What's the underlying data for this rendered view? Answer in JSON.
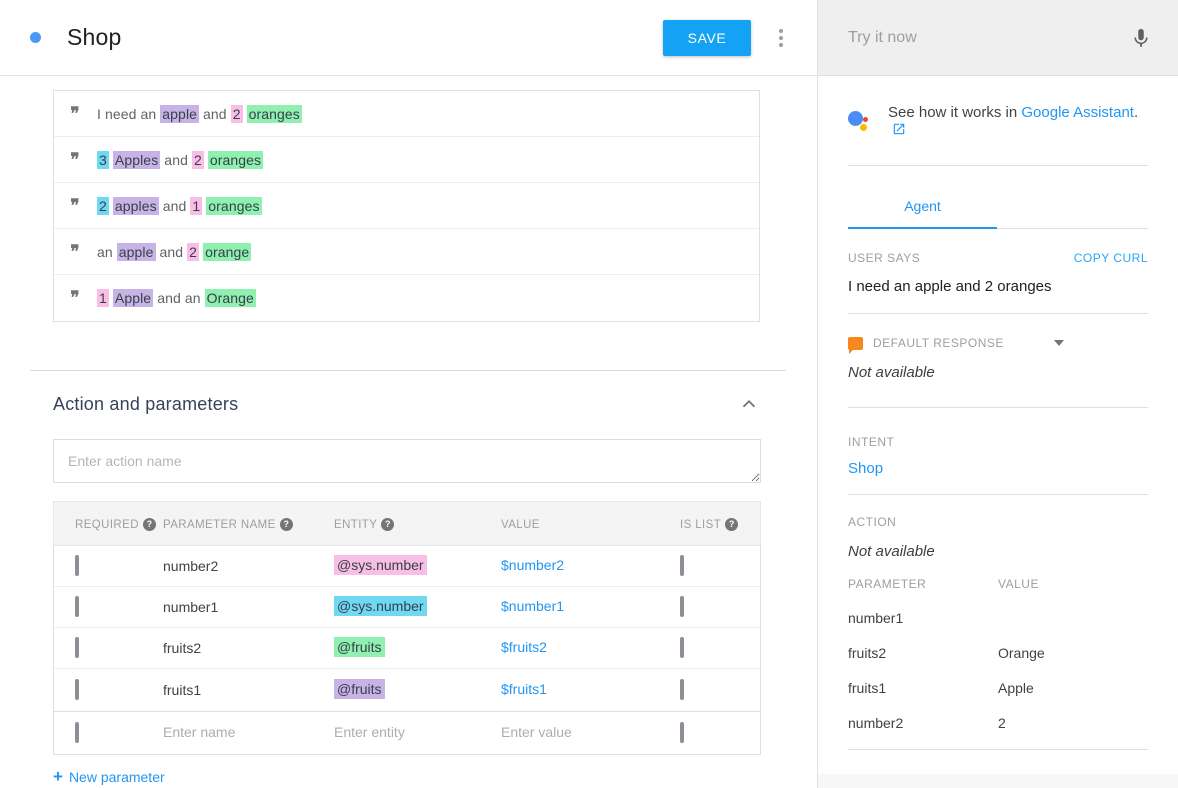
{
  "colors": {
    "accent": "#14A2F4",
    "link": "#2196F3",
    "highlight": {
      "purple": "#C8B3E6",
      "pink": "#F8BEE5",
      "green": "#8FF0B0",
      "cyan": "#6FD9F4"
    }
  },
  "icons": {
    "quote": "❞"
  },
  "header": {
    "title": "Shop",
    "save": "SAVE"
  },
  "training_phrases": [
    {
      "parts": [
        {
          "t": "I need an "
        },
        {
          "t": "apple",
          "h": "purple"
        },
        {
          "t": " and "
        },
        {
          "t": "2",
          "h": "pink"
        },
        {
          "t": " "
        },
        {
          "t": "oranges",
          "h": "green"
        }
      ]
    },
    {
      "parts": [
        {
          "t": "3",
          "h": "cyan"
        },
        {
          "t": " "
        },
        {
          "t": "Apples",
          "h": "purple"
        },
        {
          "t": " and "
        },
        {
          "t": "2",
          "h": "pink"
        },
        {
          "t": " "
        },
        {
          "t": "oranges",
          "h": "green"
        }
      ]
    },
    {
      "parts": [
        {
          "t": "2",
          "h": "cyan"
        },
        {
          "t": " "
        },
        {
          "t": "apples",
          "h": "purple"
        },
        {
          "t": " and "
        },
        {
          "t": "1",
          "h": "pink"
        },
        {
          "t": " "
        },
        {
          "t": "oranges",
          "h": "green"
        }
      ]
    },
    {
      "parts": [
        {
          "t": "an "
        },
        {
          "t": "apple",
          "h": "purple"
        },
        {
          "t": " and "
        },
        {
          "t": "2",
          "h": "pink"
        },
        {
          "t": " "
        },
        {
          "t": "orange",
          "h": "green"
        }
      ]
    },
    {
      "parts": [
        {
          "t": "1",
          "h": "pink"
        },
        {
          "t": " "
        },
        {
          "t": "Apple",
          "h": "purple"
        },
        {
          "t": " and an "
        },
        {
          "t": "Orange",
          "h": "green"
        }
      ]
    }
  ],
  "action_section": {
    "title": "Action and parameters",
    "action_placeholder": "Enter action name",
    "table": {
      "headers": [
        {
          "label": "REQUIRED",
          "help": true
        },
        {
          "label": "PARAMETER NAME",
          "help": true
        },
        {
          "label": "ENTITY",
          "help": true
        },
        {
          "label": "VALUE",
          "help": false
        },
        {
          "label": "IS LIST",
          "help": true
        }
      ],
      "rows": [
        {
          "required": false,
          "name": "number2",
          "entity": "@sys.number",
          "entity_color": "pink",
          "value": "$number2",
          "is_list": false
        },
        {
          "required": false,
          "name": "number1",
          "entity": "@sys.number",
          "entity_color": "cyan",
          "value": "$number1",
          "is_list": false
        },
        {
          "required": false,
          "name": "fruits2",
          "entity": "@fruits",
          "entity_color": "green",
          "value": "$fruits2",
          "is_list": false
        },
        {
          "required": false,
          "name": "fruits1",
          "entity": "@fruits",
          "entity_color": "purple",
          "value": "$fruits1",
          "is_list": false
        }
      ],
      "new_row_placeholders": {
        "name": "Enter name",
        "entity": "Enter entity",
        "value": "Enter value"
      }
    },
    "new_parameter": {
      "plus": "+",
      "label": "New parameter"
    }
  },
  "try_panel": {
    "input_placeholder": "Try it now",
    "assistant_note": {
      "prefix": "See how it works in ",
      "link": "Google Assistant",
      "suffix": "."
    },
    "tab": "Agent",
    "user_says": {
      "label": "USER SAYS",
      "action": "COPY CURL",
      "text": "I need an apple and 2 oranges"
    },
    "default_response": {
      "label": "DEFAULT RESPONSE",
      "value": "Not available"
    },
    "intent": {
      "label": "INTENT",
      "value": "Shop"
    },
    "action": {
      "label": "ACTION",
      "value": "Not available"
    },
    "parameters": {
      "headers": [
        "PARAMETER",
        "VALUE"
      ],
      "rows": [
        {
          "name": "number1",
          "value": ""
        },
        {
          "name": "fruits2",
          "value": "Orange"
        },
        {
          "name": "fruits1",
          "value": "Apple"
        },
        {
          "name": "number2",
          "value": "2"
        }
      ]
    }
  }
}
